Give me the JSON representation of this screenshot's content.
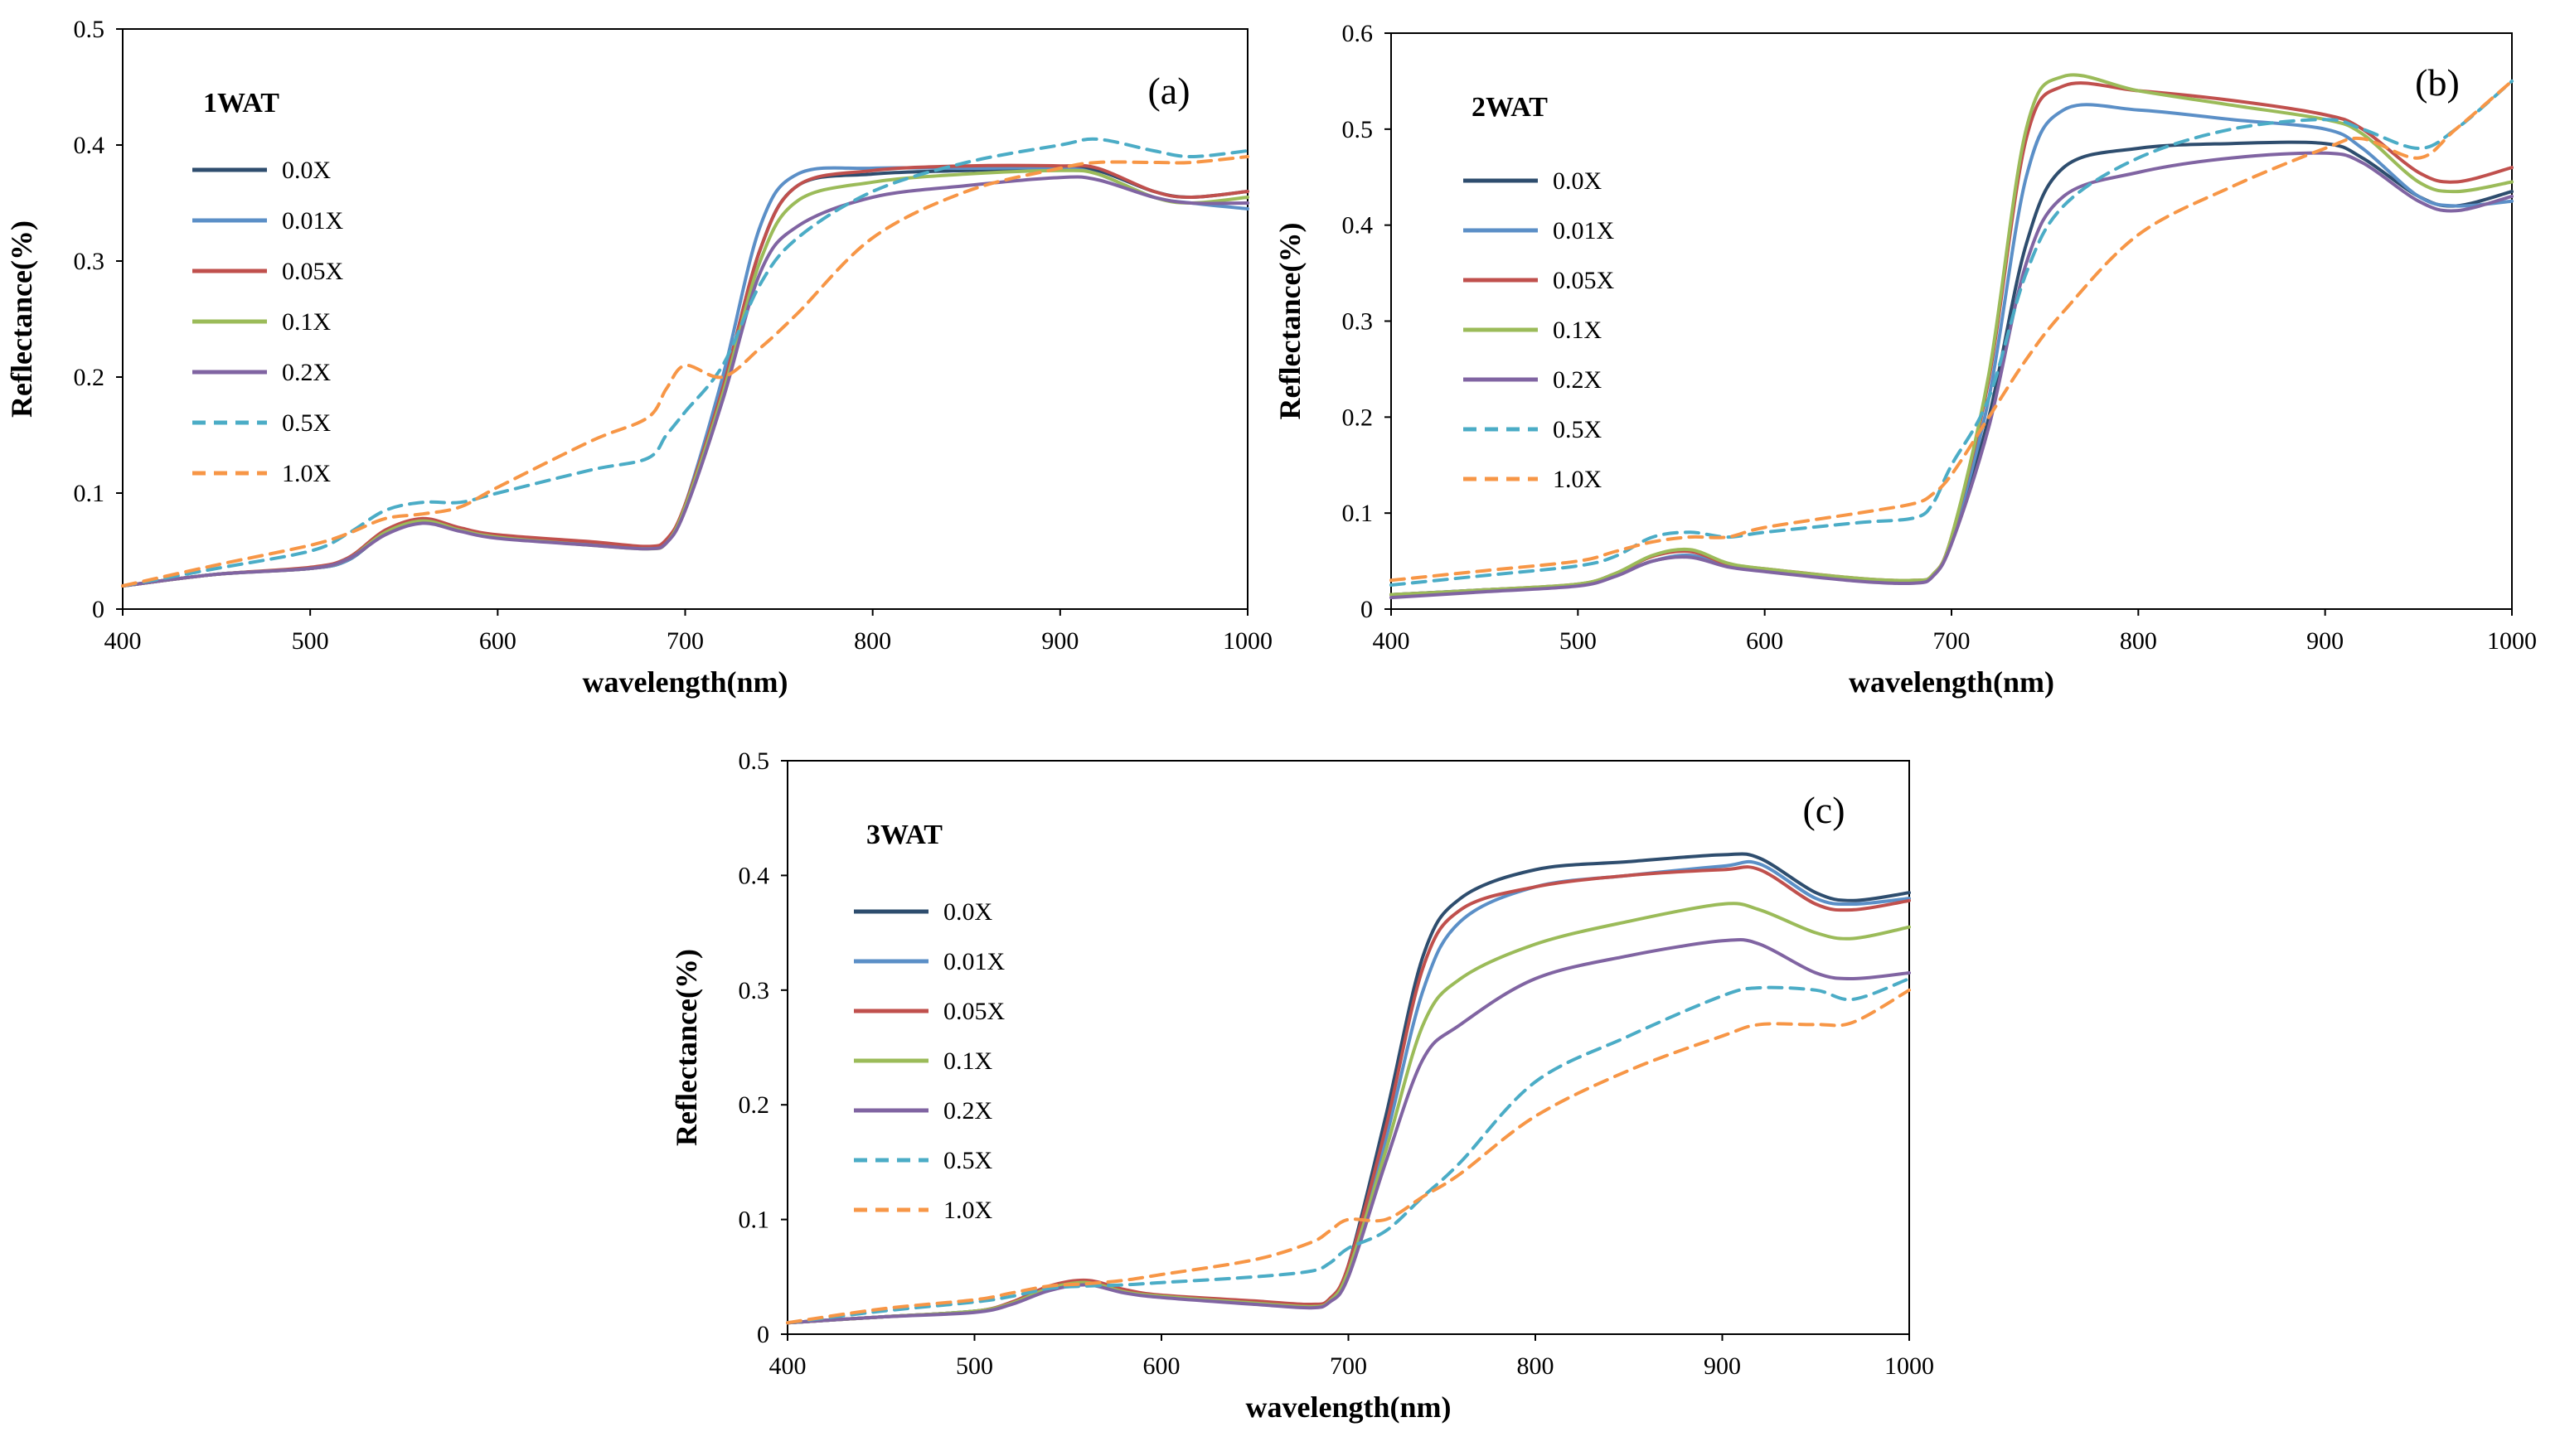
{
  "figure": {
    "series_names": [
      "0.0X",
      "0.01X",
      "0.05X",
      "0.1X",
      "0.2X",
      "0.5X",
      "1.0X"
    ],
    "series_colors": {
      "0.0X": "#2e4d6e",
      "0.01X": "#5b8fc7",
      "0.05X": "#c0504d",
      "0.1X": "#9bbb59",
      "0.2X": "#8064a2",
      "0.5X": "#4bacc6",
      "1.0X": "#f79646"
    },
    "series_styles": {
      "0.0X": "solid",
      "0.01X": "solid",
      "0.05X": "solid",
      "0.1X": "solid",
      "0.2X": "solid",
      "0.5X": "dashed",
      "1.0X": "dashed"
    }
  },
  "chart_data": [
    {
      "type": "line",
      "panel": "(a)",
      "title": "1WAT",
      "xlabel": "wavelength(nm)",
      "ylabel": "Reflectance(%)",
      "xlim": [
        400,
        1000
      ],
      "ylim": [
        0,
        0.5
      ],
      "xticks": [
        400,
        500,
        600,
        700,
        800,
        900,
        1000
      ],
      "yticks": [
        0,
        0.1,
        0.2,
        0.3,
        0.4,
        0.5
      ],
      "ytick_labels": [
        "0",
        "0.1",
        "0.2",
        "0.3",
        "0.4",
        "0.5"
      ],
      "x": [
        400,
        450,
        500,
        520,
        540,
        560,
        580,
        600,
        650,
        680,
        690,
        700,
        720,
        740,
        760,
        800,
        850,
        900,
        920,
        950,
        970,
        1000
      ],
      "series": [
        {
          "name": "0.0X",
          "values": [
            0.02,
            0.03,
            0.035,
            0.042,
            0.065,
            0.075,
            0.068,
            0.062,
            0.056,
            0.053,
            0.058,
            0.09,
            0.19,
            0.31,
            0.365,
            0.375,
            0.378,
            0.38,
            0.378,
            0.36,
            0.355,
            0.36
          ]
        },
        {
          "name": "0.01X",
          "values": [
            0.02,
            0.03,
            0.035,
            0.042,
            0.066,
            0.076,
            0.068,
            0.062,
            0.056,
            0.053,
            0.058,
            0.09,
            0.2,
            0.33,
            0.375,
            0.38,
            0.38,
            0.38,
            0.375,
            0.355,
            0.35,
            0.345
          ]
        },
        {
          "name": "0.05X",
          "values": [
            0.02,
            0.03,
            0.036,
            0.044,
            0.068,
            0.078,
            0.07,
            0.064,
            0.058,
            0.054,
            0.06,
            0.09,
            0.19,
            0.31,
            0.365,
            0.378,
            0.382,
            0.382,
            0.38,
            0.36,
            0.355,
            0.36
          ]
        },
        {
          "name": "0.1X",
          "values": [
            0.02,
            0.03,
            0.035,
            0.043,
            0.066,
            0.076,
            0.068,
            0.062,
            0.055,
            0.052,
            0.057,
            0.088,
            0.185,
            0.3,
            0.352,
            0.368,
            0.375,
            0.378,
            0.375,
            0.355,
            0.35,
            0.355
          ]
        },
        {
          "name": "0.2X",
          "values": [
            0.02,
            0.03,
            0.035,
            0.043,
            0.064,
            0.074,
            0.067,
            0.061,
            0.055,
            0.052,
            0.057,
            0.085,
            0.18,
            0.29,
            0.33,
            0.355,
            0.365,
            0.372,
            0.37,
            0.355,
            0.35,
            0.35
          ]
        },
        {
          "name": "0.5X",
          "values": [
            0.02,
            0.035,
            0.05,
            0.065,
            0.085,
            0.092,
            0.092,
            0.1,
            0.12,
            0.13,
            0.15,
            0.17,
            0.21,
            0.28,
            0.32,
            0.36,
            0.385,
            0.4,
            0.405,
            0.395,
            0.39,
            0.395
          ]
        },
        {
          "name": "1.0X",
          "values": [
            0.02,
            0.038,
            0.055,
            0.065,
            0.078,
            0.082,
            0.088,
            0.105,
            0.145,
            0.165,
            0.19,
            0.21,
            0.2,
            0.225,
            0.255,
            0.32,
            0.36,
            0.38,
            0.385,
            0.385,
            0.385,
            0.39
          ]
        }
      ]
    },
    {
      "type": "line",
      "panel": "(b)",
      "title": "2WAT",
      "xlabel": "wavelength(nm)",
      "ylabel": "Reflectance(%)",
      "xlim": [
        400,
        1000
      ],
      "ylim": [
        0,
        0.6
      ],
      "xticks": [
        400,
        500,
        600,
        700,
        800,
        900,
        1000
      ],
      "yticks": [
        0,
        0.1,
        0.2,
        0.3,
        0.4,
        0.5,
        0.6
      ],
      "ytick_labels": [
        "0",
        "0.1",
        "0.2",
        "0.3",
        "0.4",
        "0.5",
        "0.6"
      ],
      "x": [
        400,
        450,
        500,
        520,
        540,
        560,
        580,
        600,
        650,
        680,
        690,
        700,
        720,
        740,
        760,
        800,
        850,
        900,
        920,
        950,
        970,
        1000
      ],
      "series": [
        {
          "name": "0.0X",
          "values": [
            0.015,
            0.02,
            0.025,
            0.035,
            0.05,
            0.055,
            0.045,
            0.04,
            0.03,
            0.028,
            0.035,
            0.07,
            0.2,
            0.38,
            0.46,
            0.48,
            0.485,
            0.485,
            0.47,
            0.43,
            0.42,
            0.435
          ]
        },
        {
          "name": "0.01X",
          "values": [
            0.015,
            0.02,
            0.025,
            0.035,
            0.05,
            0.056,
            0.045,
            0.04,
            0.03,
            0.028,
            0.035,
            0.072,
            0.22,
            0.45,
            0.52,
            0.52,
            0.51,
            0.5,
            0.48,
            0.43,
            0.42,
            0.425
          ]
        },
        {
          "name": "0.05X",
          "values": [
            0.015,
            0.02,
            0.026,
            0.037,
            0.055,
            0.06,
            0.047,
            0.042,
            0.032,
            0.03,
            0.036,
            0.075,
            0.24,
            0.49,
            0.545,
            0.54,
            0.53,
            0.515,
            0.5,
            0.455,
            0.445,
            0.46
          ]
        },
        {
          "name": "0.1X",
          "values": [
            0.015,
            0.02,
            0.026,
            0.037,
            0.056,
            0.062,
            0.048,
            0.042,
            0.032,
            0.03,
            0.036,
            0.075,
            0.245,
            0.5,
            0.555,
            0.54,
            0.525,
            0.51,
            0.495,
            0.445,
            0.435,
            0.445
          ]
        },
        {
          "name": "0.2X",
          "values": [
            0.012,
            0.018,
            0.024,
            0.034,
            0.05,
            0.054,
            0.044,
            0.039,
            0.029,
            0.027,
            0.034,
            0.068,
            0.19,
            0.36,
            0.43,
            0.455,
            0.47,
            0.475,
            0.465,
            0.425,
            0.415,
            0.43
          ]
        },
        {
          "name": "0.5X",
          "values": [
            0.025,
            0.035,
            0.045,
            0.055,
            0.075,
            0.08,
            0.075,
            0.08,
            0.09,
            0.095,
            0.11,
            0.15,
            0.22,
            0.35,
            0.42,
            0.47,
            0.5,
            0.51,
            0.5,
            0.48,
            0.5,
            0.55
          ]
        },
        {
          "name": "1.0X",
          "values": [
            0.03,
            0.04,
            0.05,
            0.06,
            0.07,
            0.075,
            0.075,
            0.085,
            0.1,
            0.11,
            0.12,
            0.14,
            0.2,
            0.26,
            0.31,
            0.39,
            0.44,
            0.48,
            0.49,
            0.47,
            0.5,
            0.55
          ]
        }
      ]
    },
    {
      "type": "line",
      "panel": "(c)",
      "title": "3WAT",
      "xlabel": "wavelength(nm)",
      "ylabel": "Reflectance(%)",
      "xlim": [
        400,
        1000
      ],
      "ylim": [
        0,
        0.5
      ],
      "xticks": [
        400,
        500,
        600,
        700,
        800,
        900,
        1000
      ],
      "yticks": [
        0,
        0.1,
        0.2,
        0.3,
        0.4,
        0.5
      ],
      "ytick_labels": [
        "0",
        "0.1",
        "0.2",
        "0.3",
        "0.4",
        "0.5"
      ],
      "x": [
        400,
        450,
        500,
        520,
        540,
        560,
        580,
        600,
        650,
        680,
        690,
        700,
        720,
        740,
        760,
        800,
        850,
        900,
        920,
        950,
        970,
        1000
      ],
      "series": [
        {
          "name": "0.0X",
          "values": [
            0.01,
            0.015,
            0.02,
            0.027,
            0.04,
            0.045,
            0.038,
            0.033,
            0.028,
            0.025,
            0.03,
            0.06,
            0.19,
            0.33,
            0.38,
            0.405,
            0.412,
            0.418,
            0.415,
            0.385,
            0.378,
            0.385
          ]
        },
        {
          "name": "0.01X",
          "values": [
            0.01,
            0.015,
            0.02,
            0.027,
            0.04,
            0.045,
            0.038,
            0.033,
            0.028,
            0.025,
            0.03,
            0.058,
            0.17,
            0.3,
            0.36,
            0.39,
            0.4,
            0.408,
            0.41,
            0.38,
            0.375,
            0.38
          ]
        },
        {
          "name": "0.05X",
          "values": [
            0.01,
            0.015,
            0.02,
            0.028,
            0.042,
            0.047,
            0.039,
            0.034,
            0.029,
            0.026,
            0.031,
            0.06,
            0.18,
            0.32,
            0.37,
            0.39,
            0.4,
            0.405,
            0.405,
            0.375,
            0.37,
            0.378
          ]
        },
        {
          "name": "0.1X",
          "values": [
            0.01,
            0.015,
            0.02,
            0.027,
            0.04,
            0.045,
            0.037,
            0.033,
            0.027,
            0.024,
            0.029,
            0.055,
            0.16,
            0.27,
            0.31,
            0.34,
            0.36,
            0.375,
            0.37,
            0.35,
            0.345,
            0.355
          ]
        },
        {
          "name": "0.2X",
          "values": [
            0.01,
            0.015,
            0.019,
            0.026,
            0.038,
            0.043,
            0.036,
            0.032,
            0.026,
            0.023,
            0.028,
            0.05,
            0.15,
            0.24,
            0.27,
            0.31,
            0.33,
            0.343,
            0.34,
            0.315,
            0.31,
            0.315
          ]
        },
        {
          "name": "0.5X",
          "values": [
            0.01,
            0.02,
            0.028,
            0.033,
            0.04,
            0.042,
            0.043,
            0.045,
            0.05,
            0.055,
            0.062,
            0.075,
            0.09,
            0.12,
            0.15,
            0.22,
            0.26,
            0.295,
            0.302,
            0.3,
            0.292,
            0.31
          ]
        },
        {
          "name": "1.0X",
          "values": [
            0.01,
            0.022,
            0.03,
            0.036,
            0.042,
            0.044,
            0.047,
            0.052,
            0.065,
            0.08,
            0.09,
            0.1,
            0.1,
            0.12,
            0.14,
            0.19,
            0.23,
            0.26,
            0.27,
            0.27,
            0.272,
            0.3
          ]
        }
      ]
    }
  ]
}
